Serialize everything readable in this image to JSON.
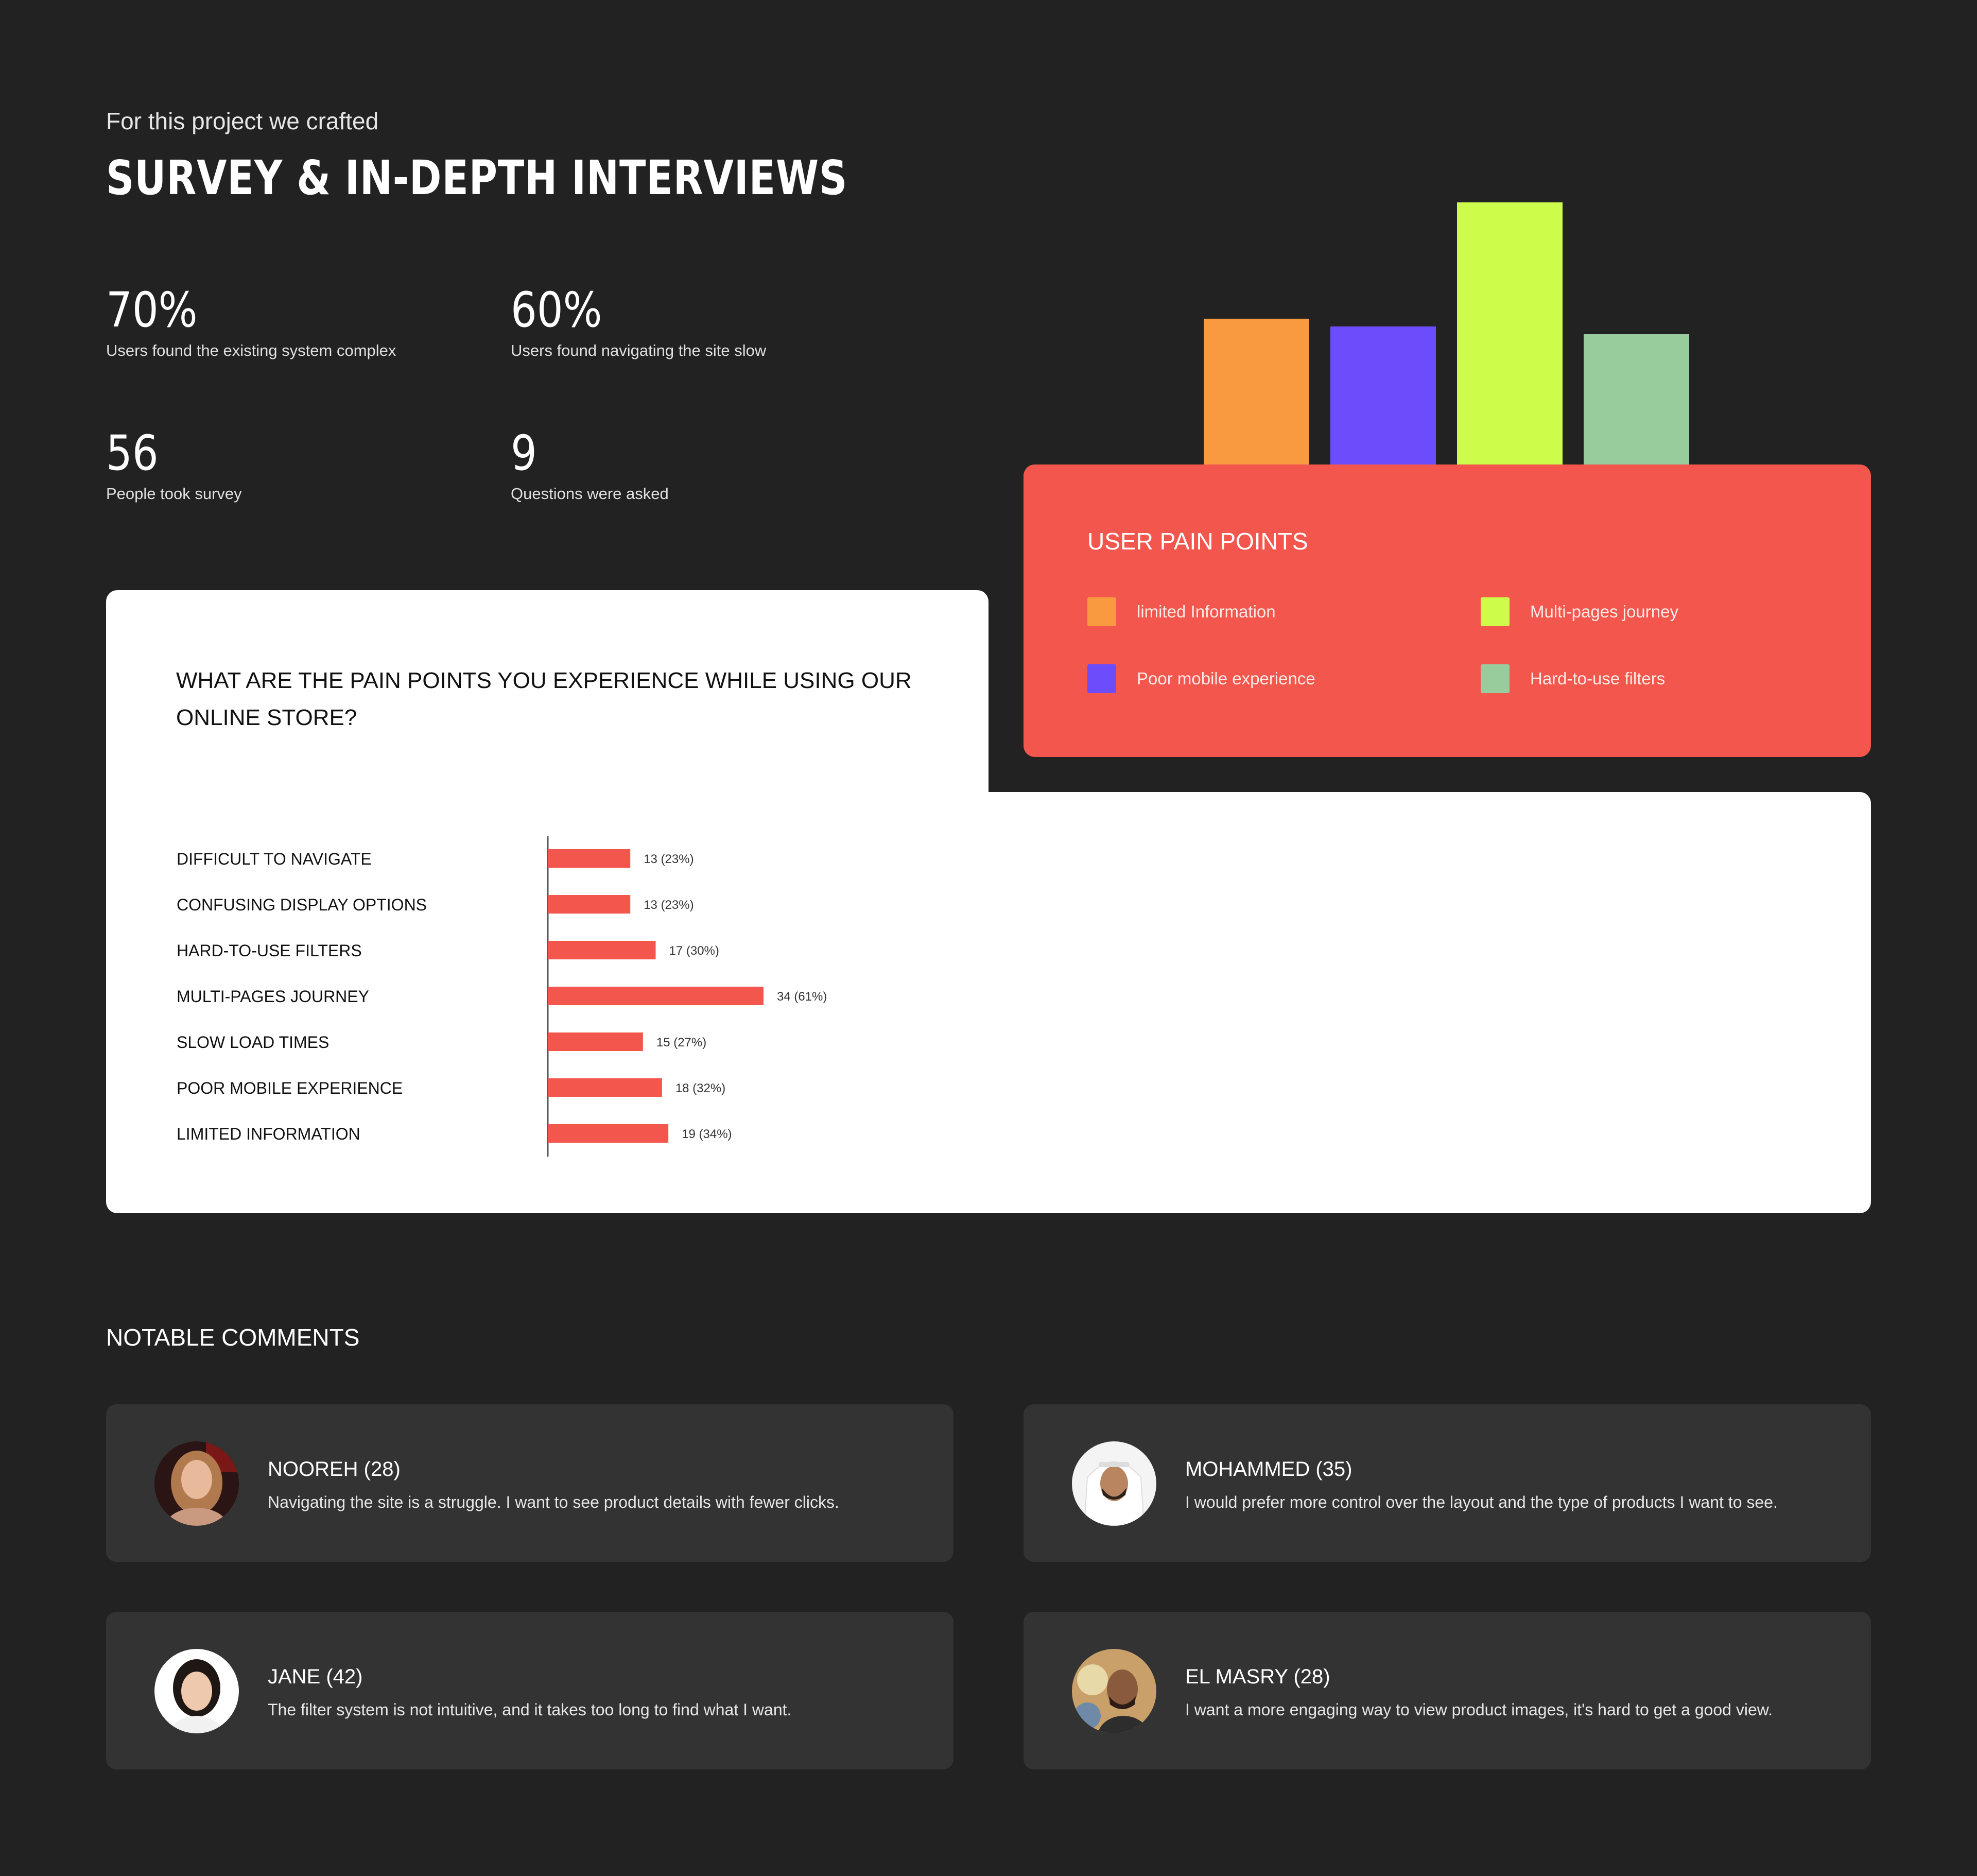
{
  "header": {
    "intro": "For this project we crafted",
    "title": "SURVEY & IN-DEPTH INTERVIEWS"
  },
  "stats": [
    {
      "value": "70%",
      "label": "Users found the existing system complex"
    },
    {
      "value": "60%",
      "label": "Users found navigating the site slow"
    },
    {
      "value": "56",
      "label": "People took survey"
    },
    {
      "value": "9",
      "label": "Questions were asked"
    }
  ],
  "legend": {
    "title": "USER PAIN POINTS",
    "items": [
      {
        "label": "limited Information",
        "color": "#f99a40"
      },
      {
        "label": "Multi-pages journey",
        "color": "#cdfc4a"
      },
      {
        "label": "Poor mobile experience",
        "color": "#6d4cfb"
      },
      {
        "label": "Hard-to-use filters",
        "color": "#98cc9c"
      }
    ]
  },
  "question": {
    "text": "WHAT ARE THE PAIN POINTS YOU EXPERIENCE WHILE USING OUR ONLINE STORE?"
  },
  "chart_data": [
    {
      "type": "bar",
      "orientation": "vertical",
      "categories": [
        "limited Information",
        "Poor mobile experience",
        "Multi-pages journey",
        "Hard-to-use filters"
      ],
      "values": [
        19,
        18,
        34,
        17
      ],
      "colors": [
        "#f99a40",
        "#6d4cfb",
        "#cdfc4a",
        "#98cc9c"
      ],
      "ylim": [
        0,
        34
      ],
      "grid": false,
      "legend": "below"
    },
    {
      "type": "bar",
      "orientation": "horizontal",
      "categories": [
        "DIFFICULT TO NAVIGATE",
        "CONFUSING DISPLAY OPTIONS",
        "HARD-TO-USE FILTERS",
        "MULTI-PAGES JOURNEY",
        "SLOW LOAD TIMES",
        "POOR MOBILE EXPERIENCE",
        "LIMITED INFORMATION"
      ],
      "values": [
        13,
        13,
        17,
        34,
        15,
        18,
        19
      ],
      "data_labels": [
        "13 (23%)",
        "13 (23%)",
        "17 (30%)",
        "34 (61%)",
        "15 (27%)",
        "18 (32%)",
        "19 (34%)"
      ],
      "color": "#f2564d",
      "xlim": [
        0,
        34
      ],
      "grid": false
    }
  ],
  "comments": {
    "heading": "NOTABLE COMMENTS",
    "items": [
      {
        "name": "NOOREH (28)",
        "text": "Navigating the site is a struggle. I want to see product details with fewer clicks."
      },
      {
        "name": "MOHAMMED (35)",
        "text": "I would prefer more control over the layout and the type of products I want to see."
      },
      {
        "name": "JANE (42)",
        "text": "The filter system is not intuitive, and it takes too long to find what I want."
      },
      {
        "name": "EL MASRY (28)",
        "text": "I want a more engaging way to view product images, it's hard to get a good view."
      }
    ]
  }
}
